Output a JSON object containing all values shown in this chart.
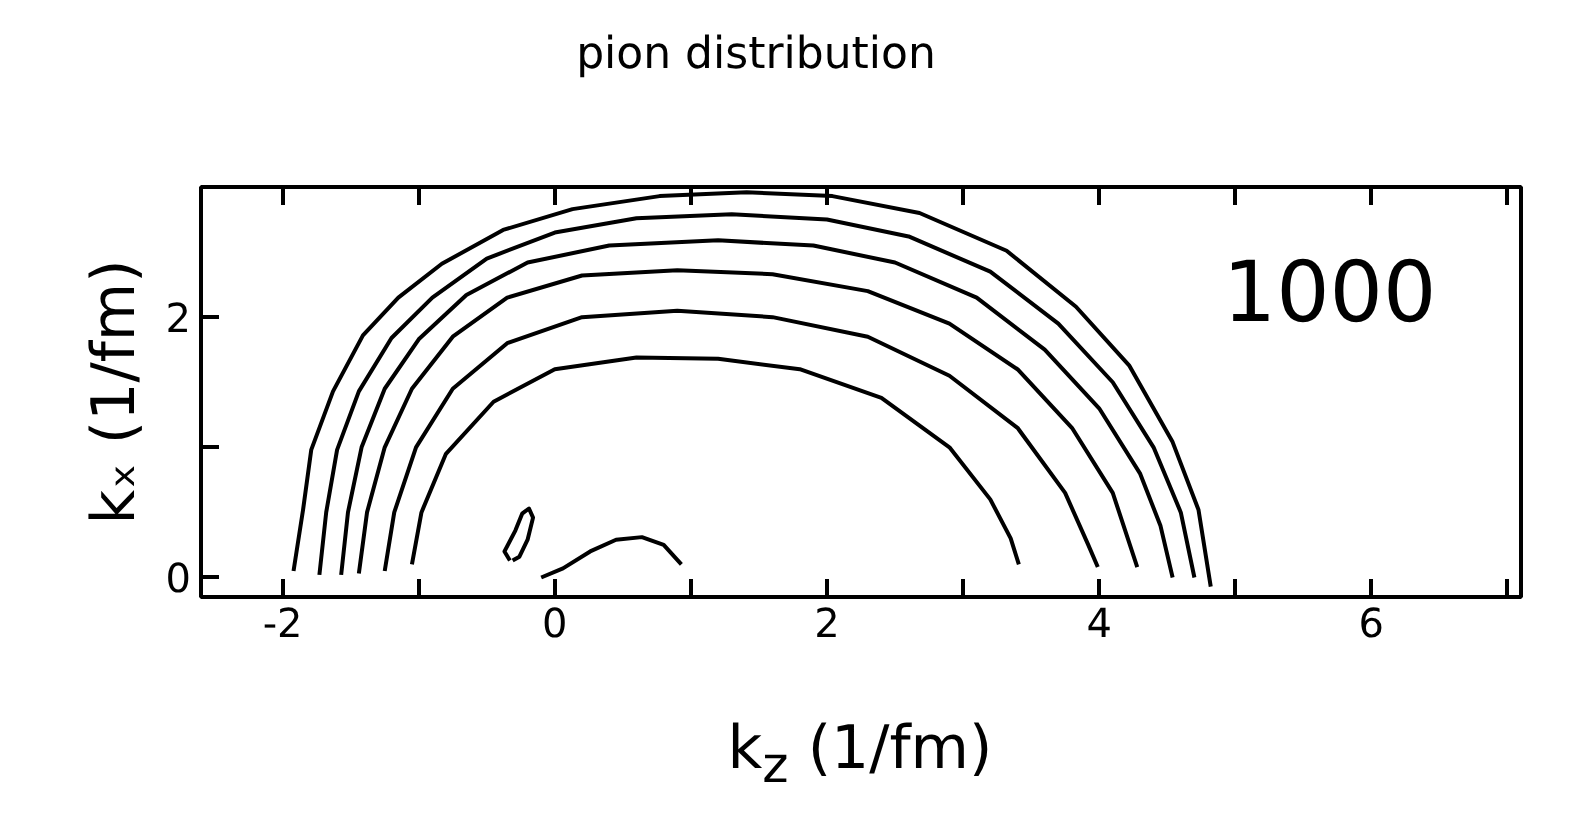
{
  "chart_data": {
    "type": "line",
    "title": "pion distribution",
    "xlabel": "k$_{z}$ (1/fm)",
    "ylabel": "kₓ (1/fm)",
    "xlim": [
      -2.6,
      7.1
    ],
    "ylim": [
      -0.15,
      3.0
    ],
    "xticks": [
      -2,
      {
        "value": -1,
        "label": null
      },
      0,
      {
        "value": 1,
        "label": null
      },
      2,
      {
        "value": 3,
        "label": null
      },
      4,
      {
        "value": 5,
        "label": null
      },
      6,
      {
        "value": 7,
        "label": null
      }
    ],
    "yticks": [
      0,
      {
        "value": 1,
        "label": null
      },
      2,
      {
        "value": 3,
        "label": null
      }
    ],
    "grid": false,
    "line_style": "solid",
    "annotations": [
      "1000"
    ],
    "series": [
      {
        "color": "#000000",
        "x": [
          -1.92,
          -1.85,
          -1.79,
          -1.63,
          -1.41,
          -1.15,
          -0.83,
          -0.38,
          0.13,
          0.77,
          1.41,
          2.04,
          2.68,
          3.32,
          3.83,
          4.22,
          4.54,
          4.73,
          4.82
        ],
        "values": [
          0.05,
          0.52,
          0.98,
          1.43,
          1.86,
          2.15,
          2.41,
          2.67,
          2.83,
          2.93,
          2.96,
          2.93,
          2.8,
          2.51,
          2.08,
          1.63,
          1.04,
          0.52,
          -0.07
        ]
      },
      {
        "color": "#000000",
        "x": [
          -1.73,
          -1.68,
          -1.6,
          -1.44,
          -1.2,
          -0.9,
          -0.5,
          0.0,
          0.6,
          1.3,
          2.0,
          2.6,
          3.2,
          3.7,
          4.1,
          4.4,
          4.6,
          4.7
        ],
        "values": [
          0.02,
          0.5,
          0.98,
          1.43,
          1.84,
          2.15,
          2.45,
          2.65,
          2.76,
          2.79,
          2.75,
          2.62,
          2.35,
          1.95,
          1.5,
          1.0,
          0.5,
          0.0
        ]
      },
      {
        "color": "#000000",
        "x": [
          -1.57,
          -1.52,
          -1.42,
          -1.25,
          -1.0,
          -0.65,
          -0.2,
          0.4,
          1.2,
          1.9,
          2.5,
          3.1,
          3.6,
          4.0,
          4.3,
          4.45,
          4.54
        ],
        "values": [
          0.02,
          0.5,
          1.0,
          1.45,
          1.83,
          2.17,
          2.42,
          2.55,
          2.59,
          2.55,
          2.42,
          2.15,
          1.75,
          1.3,
          0.8,
          0.4,
          0.0
        ]
      },
      {
        "color": "#000000",
        "x": [
          -1.44,
          -1.38,
          -1.25,
          -1.05,
          -0.75,
          -0.35,
          0.2,
          0.9,
          1.6,
          2.3,
          2.9,
          3.4,
          3.8,
          4.1,
          4.28
        ],
        "values": [
          0.03,
          0.5,
          1.0,
          1.45,
          1.85,
          2.15,
          2.32,
          2.36,
          2.33,
          2.2,
          1.95,
          1.6,
          1.15,
          0.65,
          0.08
        ]
      },
      {
        "color": "#000000",
        "x": [
          -1.25,
          -1.18,
          -1.02,
          -0.75,
          -0.35,
          0.2,
          0.9,
          1.6,
          2.3,
          2.9,
          3.4,
          3.75,
          3.92,
          3.99
        ],
        "values": [
          0.05,
          0.5,
          1.0,
          1.45,
          1.8,
          2.0,
          2.05,
          2.0,
          1.85,
          1.55,
          1.15,
          0.65,
          0.25,
          0.08
        ]
      },
      {
        "color": "#000000",
        "x": [
          -1.05,
          -0.98,
          -0.8,
          -0.45,
          0.0,
          0.6,
          1.2,
          1.8,
          2.4,
          2.9,
          3.2,
          3.35,
          3.41
        ],
        "values": [
          0.1,
          0.5,
          0.95,
          1.35,
          1.6,
          1.69,
          1.68,
          1.6,
          1.38,
          1.0,
          0.6,
          0.3,
          0.1
        ]
      },
      {
        "color": "#000000",
        "x": [
          -0.1,
          0.06,
          0.26,
          0.45,
          0.64,
          0.8,
          0.93
        ],
        "values": [
          0.0,
          0.07,
          0.2,
          0.29,
          0.31,
          0.25,
          0.1
        ]
      },
      {
        "color": "#000000",
        "x": [
          -0.33,
          -0.37,
          -0.29,
          -0.24,
          -0.19,
          -0.16,
          -0.2,
          -0.26,
          -0.31
        ],
        "values": [
          0.13,
          0.2,
          0.36,
          0.49,
          0.53,
          0.46,
          0.29,
          0.16,
          0.13
        ]
      }
    ]
  }
}
